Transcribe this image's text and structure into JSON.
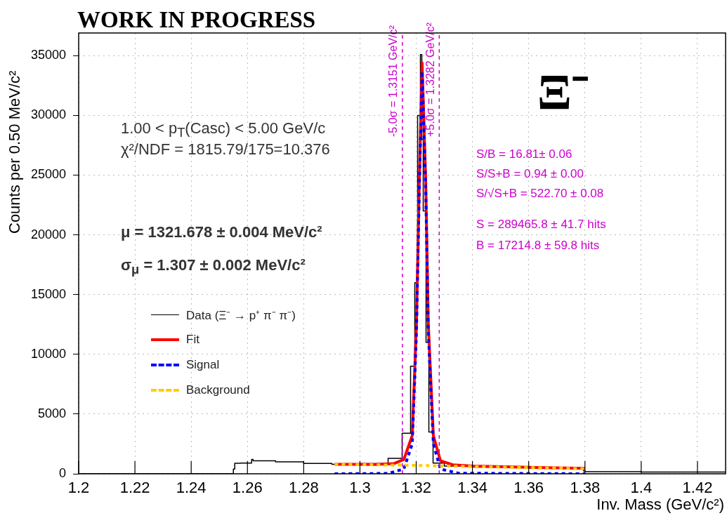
{
  "chart_data": {
    "type": "line",
    "title": "WORK IN PROGRESS",
    "xlabel": "Inv. Mass (GeV/c²)",
    "ylabel": "Counts per 0.50 MeV/c²",
    "xlim": [
      1.2,
      1.43
    ],
    "ylim": [
      0,
      36900
    ],
    "xticks": [
      1.2,
      1.22,
      1.24,
      1.26,
      1.28,
      1.3,
      1.32,
      1.34,
      1.36,
      1.38,
      1.4,
      1.42
    ],
    "yticks": [
      0,
      5000,
      10000,
      15000,
      20000,
      25000,
      30000,
      35000
    ],
    "grid": true,
    "legend": "left",
    "marker": "none",
    "series": [
      {
        "name": "Data (Ξ⁻ → p⁺ π⁻ π⁻)",
        "type": "step",
        "color": "#000000",
        "line_style": "solid",
        "x": [
          1.2,
          1.255,
          1.2555,
          1.2575,
          1.2615,
          1.262,
          1.27,
          1.28,
          1.29,
          1.3,
          1.31,
          1.315,
          1.318,
          1.3195,
          1.3205,
          1.3215,
          1.322,
          1.3225,
          1.3235,
          1.3245,
          1.326,
          1.33,
          1.34,
          1.36,
          1.3795,
          1.38,
          1.4,
          1.43
        ],
        "values": [
          0,
          0,
          400,
          880,
          900,
          1200,
          1080,
          1000,
          860,
          800,
          850,
          1300,
          3400,
          9000,
          16000,
          30000,
          35100,
          28000,
          22000,
          11000,
          3500,
          900,
          650,
          560,
          450,
          230,
          180,
          140
        ]
      },
      {
        "name": "Fit",
        "type": "line",
        "color": "#ff0000",
        "line_style": "solid",
        "x": [
          1.291,
          1.305,
          1.312,
          1.3156,
          1.3186,
          1.3201,
          1.3211,
          1.3221,
          1.3234,
          1.3243,
          1.3261,
          1.3286,
          1.333,
          1.34,
          1.36,
          1.38
        ],
        "values": [
          800,
          780,
          850,
          1200,
          3200,
          12600,
          24400,
          34400,
          24400,
          12600,
          3200,
          1100,
          750,
          640,
          540,
          450
        ]
      },
      {
        "name": "Signal",
        "type": "line",
        "color": "#0000ff",
        "line_style": "dashed",
        "x": [
          1.291,
          1.31,
          1.3156,
          1.3186,
          1.3201,
          1.3211,
          1.3221,
          1.3234,
          1.3243,
          1.3261,
          1.3286,
          1.335,
          1.38
        ],
        "values": [
          0,
          30,
          400,
          2500,
          11900,
          23700,
          33700,
          23700,
          11900,
          2500,
          400,
          50,
          0
        ]
      },
      {
        "name": "Background",
        "type": "line",
        "color": "#ffcc00",
        "line_style": "dashed",
        "x": [
          1.291,
          1.32,
          1.35,
          1.38
        ],
        "values": [
          800,
          700,
          560,
          430
        ]
      }
    ],
    "ref_lines": [
      {
        "axis": "x",
        "value": 1.3151,
        "label": "-5.0σ = 1.3151 GeV/c²",
        "color": "#cc00cc",
        "line_style": "dashed"
      },
      {
        "axis": "x",
        "value": 1.3282,
        "label": "+5.0σ = 1.3282 GeV/c²",
        "color": "#cc00cc",
        "line_style": "dashed"
      }
    ],
    "annotations": [
      "1.00 < p$_{T}$(Casc) < 5.00 GeV/c",
      "χ²/NDF = 1815.79/175=10.376",
      "μ = 1321.678 ± 0.004 MeV/c²",
      "σ$_{μ}$ = 1.307 ± 0.002 MeV/c²",
      "Ξ⁻",
      "S/B = 16.81± 0.06",
      "S/S+B = 0.94 ± 0.00",
      "S/√S+B = 522.70 ± 0.08",
      "S = 289465.8 ± 41.7 hits",
      "B = 17214.8 ± 59.8 hits"
    ]
  }
}
